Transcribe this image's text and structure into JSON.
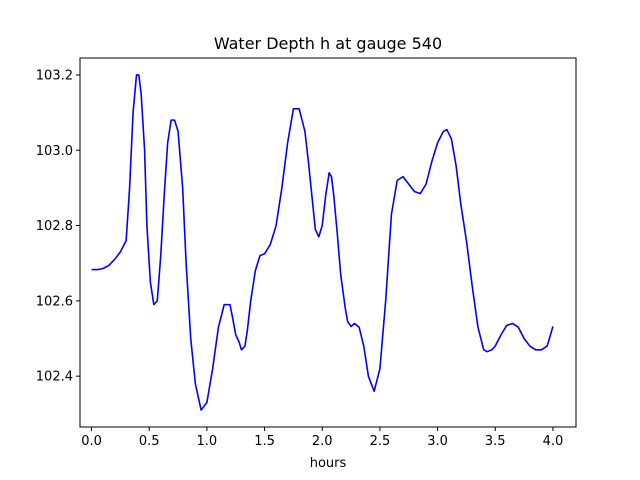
{
  "chart_data": {
    "type": "line",
    "title": "Water Depth h at gauge 540",
    "xlabel": "hours",
    "ylabel": "",
    "xlim": [
      -0.1,
      4.2
    ],
    "ylim": [
      102.265,
      103.245
    ],
    "xticks": [
      0.0,
      0.5,
      1.0,
      1.5,
      2.0,
      2.5,
      3.0,
      3.5,
      4.0
    ],
    "xtick_labels": [
      "0.0",
      "0.5",
      "1.0",
      "1.5",
      "2.0",
      "2.5",
      "3.0",
      "3.5",
      "4.0"
    ],
    "yticks": [
      102.4,
      102.6,
      102.8,
      103.0,
      103.2
    ],
    "ytick_labels": [
      "102.4",
      "102.6",
      "102.8",
      "103.0",
      "103.2"
    ],
    "grid": false,
    "series": [
      {
        "color": "#0000ff",
        "x": [
          0.0,
          0.05,
          0.1,
          0.15,
          0.2,
          0.25,
          0.3,
          0.33,
          0.36,
          0.39,
          0.41,
          0.43,
          0.46,
          0.48,
          0.51,
          0.54,
          0.57,
          0.6,
          0.63,
          0.66,
          0.69,
          0.72,
          0.75,
          0.79,
          0.82,
          0.86,
          0.9,
          0.95,
          1.0,
          1.05,
          1.1,
          1.15,
          1.2,
          1.22,
          1.25,
          1.28,
          1.3,
          1.33,
          1.35,
          1.38,
          1.42,
          1.46,
          1.5,
          1.55,
          1.6,
          1.65,
          1.7,
          1.75,
          1.8,
          1.85,
          1.88,
          1.91,
          1.94,
          1.97,
          2.0,
          2.03,
          2.06,
          2.08,
          2.1,
          2.13,
          2.16,
          2.2,
          2.22,
          2.25,
          2.28,
          2.32,
          2.36,
          2.4,
          2.45,
          2.5,
          2.55,
          2.6,
          2.65,
          2.7,
          2.75,
          2.8,
          2.85,
          2.9,
          2.95,
          3.0,
          3.05,
          3.08,
          3.12,
          3.16,
          3.2,
          3.25,
          3.3,
          3.35,
          3.4,
          3.43,
          3.47,
          3.5,
          3.55,
          3.6,
          3.65,
          3.7,
          3.75,
          3.8,
          3.85,
          3.9,
          3.95,
          4.0
        ],
        "y": [
          102.683,
          102.683,
          102.686,
          102.694,
          102.71,
          102.73,
          102.76,
          102.9,
          103.1,
          103.2,
          103.2,
          103.15,
          103.0,
          102.8,
          102.65,
          102.59,
          102.6,
          102.72,
          102.88,
          103.02,
          103.08,
          103.08,
          103.05,
          102.9,
          102.7,
          102.5,
          102.38,
          102.31,
          102.33,
          102.42,
          102.53,
          102.59,
          102.59,
          102.56,
          102.51,
          102.49,
          102.47,
          102.48,
          102.52,
          102.6,
          102.68,
          102.72,
          102.725,
          102.75,
          102.8,
          102.9,
          103.02,
          103.11,
          103.11,
          103.05,
          102.97,
          102.88,
          102.79,
          102.77,
          102.8,
          102.88,
          102.94,
          102.93,
          102.88,
          102.78,
          102.67,
          102.58,
          102.545,
          102.532,
          102.54,
          102.53,
          102.48,
          102.4,
          102.36,
          102.42,
          102.6,
          102.83,
          102.92,
          102.93,
          102.91,
          102.89,
          102.885,
          102.91,
          102.97,
          103.02,
          103.05,
          103.055,
          103.03,
          102.96,
          102.86,
          102.76,
          102.64,
          102.53,
          102.47,
          102.465,
          102.47,
          102.48,
          102.51,
          102.535,
          102.54,
          102.53,
          102.5,
          102.48,
          102.47,
          102.47,
          102.48,
          102.532
        ]
      }
    ]
  }
}
